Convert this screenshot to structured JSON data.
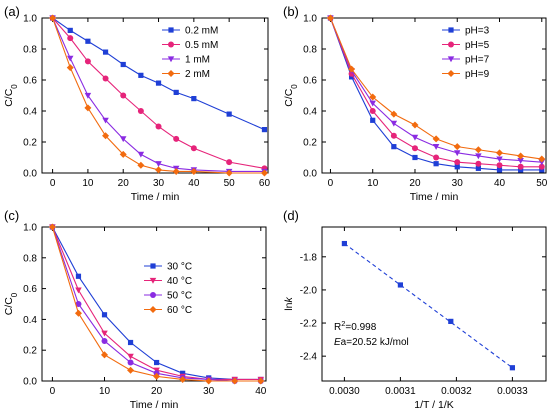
{
  "chart_data": [
    {
      "panel": "(a)",
      "type": "line",
      "xlabel": "Time / min",
      "ylabel": "C/C",
      "ylabel_sub": "0",
      "xlim": [
        -3,
        61
      ],
      "ylim": [
        0,
        1.0
      ],
      "xticks": [
        0,
        10,
        20,
        30,
        40,
        50,
        60
      ],
      "yticks": [
        0.0,
        0.2,
        0.4,
        0.6,
        0.8,
        1.0
      ],
      "ytick_format": 1,
      "legend_position": "top-right",
      "series": [
        {
          "name": "0.2 mM",
          "color": "#1f3fd6",
          "marker": "square",
          "x": [
            0,
            5,
            10,
            15,
            20,
            25,
            30,
            35,
            40,
            50,
            60
          ],
          "y": [
            1.0,
            0.92,
            0.85,
            0.78,
            0.7,
            0.63,
            0.58,
            0.52,
            0.48,
            0.38,
            0.28
          ]
        },
        {
          "name": "0.5 mM",
          "color": "#e6247a",
          "marker": "circle",
          "x": [
            0,
            5,
            10,
            15,
            20,
            25,
            30,
            35,
            40,
            50,
            60
          ],
          "y": [
            1.0,
            0.87,
            0.72,
            0.61,
            0.5,
            0.4,
            0.3,
            0.22,
            0.16,
            0.07,
            0.03
          ]
        },
        {
          "name": "1 mM",
          "color": "#8a2be2",
          "marker": "triangle-down",
          "x": [
            0,
            5,
            10,
            15,
            20,
            25,
            30,
            35,
            40,
            50,
            60
          ],
          "y": [
            1.0,
            0.74,
            0.5,
            0.34,
            0.22,
            0.12,
            0.06,
            0.03,
            0.02,
            0.01,
            0.01
          ]
        },
        {
          "name": "2 mM",
          "color": "#f26b0f",
          "marker": "diamond",
          "x": [
            0,
            5,
            10,
            15,
            20,
            25,
            30,
            35,
            40,
            50,
            60
          ],
          "y": [
            1.0,
            0.68,
            0.42,
            0.24,
            0.12,
            0.05,
            0.02,
            0.01,
            0.01,
            0.0,
            0.0
          ]
        }
      ]
    },
    {
      "panel": "(b)",
      "type": "line",
      "xlabel": "Time / min",
      "ylabel": "C/C",
      "ylabel_sub": "0",
      "xlim": [
        -2,
        51
      ],
      "ylim": [
        0,
        1.0
      ],
      "xticks": [
        0,
        10,
        20,
        30,
        40,
        50
      ],
      "yticks": [
        0.0,
        0.2,
        0.4,
        0.6,
        0.8,
        1.0
      ],
      "ytick_format": 1,
      "legend_position": "top-right",
      "series": [
        {
          "name": "pH=3",
          "color": "#1f3fd6",
          "marker": "square",
          "x": [
            0,
            5,
            10,
            15,
            20,
            25,
            30,
            35,
            40,
            45,
            50
          ],
          "y": [
            1.0,
            0.62,
            0.34,
            0.17,
            0.1,
            0.06,
            0.04,
            0.03,
            0.02,
            0.02,
            0.02
          ]
        },
        {
          "name": "pH=5",
          "color": "#e6247a",
          "marker": "circle",
          "x": [
            0,
            5,
            10,
            15,
            20,
            25,
            30,
            35,
            40,
            45,
            50
          ],
          "y": [
            1.0,
            0.64,
            0.4,
            0.24,
            0.16,
            0.1,
            0.07,
            0.06,
            0.05,
            0.04,
            0.04
          ]
        },
        {
          "name": "pH=7",
          "color": "#8a2be2",
          "marker": "triangle-down",
          "x": [
            0,
            5,
            10,
            15,
            20,
            25,
            30,
            35,
            40,
            45,
            50
          ],
          "y": [
            1.0,
            0.66,
            0.45,
            0.32,
            0.23,
            0.17,
            0.13,
            0.11,
            0.09,
            0.08,
            0.07
          ]
        },
        {
          "name": "pH=9",
          "color": "#f26b0f",
          "marker": "diamond",
          "x": [
            0,
            5,
            10,
            15,
            20,
            25,
            30,
            35,
            40,
            45,
            50
          ],
          "y": [
            1.0,
            0.67,
            0.49,
            0.38,
            0.31,
            0.22,
            0.17,
            0.15,
            0.13,
            0.11,
            0.09
          ]
        }
      ]
    },
    {
      "panel": "(c)",
      "type": "line",
      "xlabel": "Time / min",
      "ylabel": "C/C",
      "ylabel_sub": "0",
      "xlim": [
        -2,
        41
      ],
      "ylim": [
        0,
        1.0
      ],
      "xticks": [
        0,
        10,
        20,
        30,
        40
      ],
      "yticks": [
        0.0,
        0.2,
        0.4,
        0.6,
        0.8,
        1.0
      ],
      "ytick_format": 1,
      "legend_position": "top-right",
      "series": [
        {
          "name": "30 °C",
          "color": "#1f3fd6",
          "marker": "square",
          "x": [
            0,
            5,
            10,
            15,
            20,
            25,
            30,
            35,
            40
          ],
          "y": [
            1.0,
            0.68,
            0.43,
            0.25,
            0.12,
            0.05,
            0.02,
            0.01,
            0.01
          ]
        },
        {
          "name": "40 °C",
          "color": "#e6247a",
          "marker": "triangle-down",
          "x": [
            0,
            5,
            10,
            15,
            20,
            25,
            30,
            35,
            40
          ],
          "y": [
            1.0,
            0.59,
            0.31,
            0.16,
            0.07,
            0.03,
            0.01,
            0.01,
            0.01
          ]
        },
        {
          "name": "50 °C",
          "color": "#8a2be2",
          "marker": "circle",
          "x": [
            0,
            5,
            10,
            15,
            20,
            25,
            30,
            35,
            40
          ],
          "y": [
            1.0,
            0.5,
            0.26,
            0.12,
            0.05,
            0.02,
            0.01,
            0.0,
            0.0
          ]
        },
        {
          "name": "60 °C",
          "color": "#f26b0f",
          "marker": "diamond",
          "x": [
            0,
            5,
            10,
            15,
            20,
            25,
            30,
            35,
            40
          ],
          "y": [
            1.0,
            0.44,
            0.17,
            0.07,
            0.03,
            0.01,
            0.0,
            0.0,
            0.0
          ]
        }
      ]
    },
    {
      "panel": "(d)",
      "type": "scatter",
      "xlabel": "1/T / 1/K",
      "ylabel": "ln",
      "ylabel_italic": "k",
      "xlim": [
        0.00296,
        0.00336
      ],
      "ylim": [
        -2.55,
        -1.62
      ],
      "xticks": [
        0.003,
        0.0031,
        0.0032,
        0.0033
      ],
      "xtick_format": 4,
      "yticks": [
        -2.4,
        -2.2,
        -2.0,
        -1.8
      ],
      "ytick_format": 1,
      "series": [
        {
          "color": "#1f3fd6",
          "marker": "square",
          "x": [
            0.003,
            0.0031,
            0.00319,
            0.0033
          ],
          "y": [
            -1.72,
            -1.97,
            -2.19,
            -2.47
          ]
        }
      ],
      "fit_line": {
        "color": "#1f3fd6",
        "style": "dashed",
        "x": [
          0.003,
          0.0033
        ],
        "y": [
          -1.72,
          -2.47
        ]
      },
      "annotations": {
        "r2_label": "R",
        "r2_sup": "2",
        "r2_value": "=0.998",
        "ea_label": "E",
        "ea_value": "a=20.52 kJ/mol"
      }
    }
  ]
}
